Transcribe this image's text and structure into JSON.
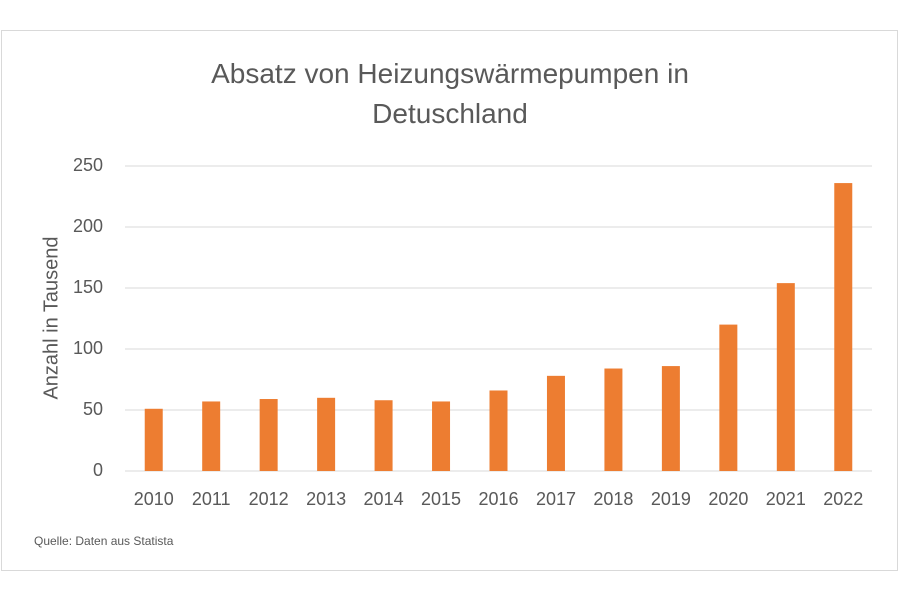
{
  "chart_data": {
    "type": "bar",
    "title": "Absatz von Heizungswärmepumpen in Detuschland",
    "y_label": "Anzahl in Tausend",
    "source": "Quelle: Daten aus Statista",
    "categories": [
      "2010",
      "2011",
      "2012",
      "2013",
      "2014",
      "2015",
      "2016",
      "2017",
      "2018",
      "2019",
      "2020",
      "2021",
      "2022"
    ],
    "values": [
      51,
      57,
      59,
      60,
      58,
      57,
      66,
      78,
      84,
      86,
      120,
      154,
      236
    ],
    "color": "#ed7d31",
    "ylim": [
      0,
      250
    ],
    "yticks": [
      0,
      50,
      100,
      150,
      200,
      250
    ],
    "grid": true
  }
}
